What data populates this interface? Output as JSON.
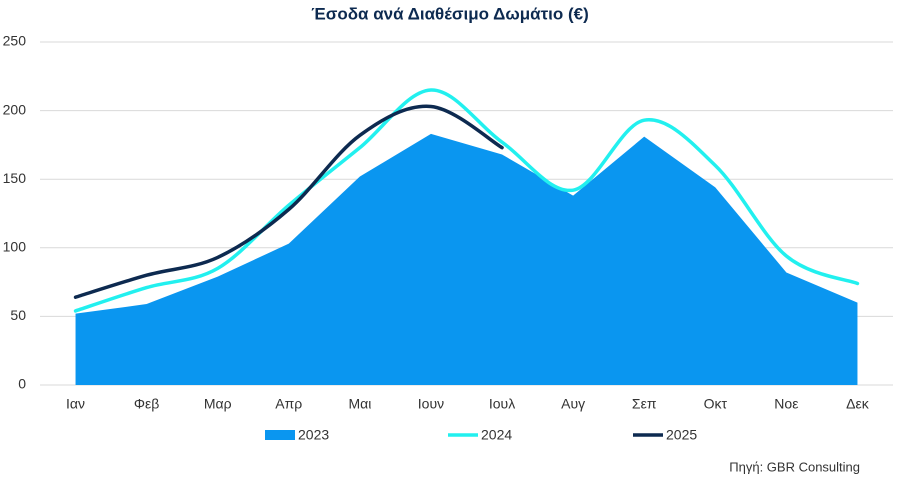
{
  "chart_data": {
    "type": "area_line",
    "title": "Έσοδα ανά Διαθέσιμο Δωμάτιο (€)",
    "categories": [
      "Ιαν",
      "Φεβ",
      "Μαρ",
      "Απρ",
      "Μαι",
      "Ιουν",
      "Ιουλ",
      "Αυγ",
      "Σεπ",
      "Οκτ",
      "Νοε",
      "Δεκ"
    ],
    "series": [
      {
        "name": "2023",
        "kind": "area",
        "color": "#0a96f0",
        "values": [
          52,
          59,
          79,
          103,
          152,
          183,
          168,
          138,
          181,
          144,
          82,
          60
        ]
      },
      {
        "name": "2024",
        "kind": "line",
        "color": "#22f0ef",
        "values": [
          54,
          71,
          85,
          131,
          173,
          215,
          177,
          142,
          193,
          160,
          94,
          74
        ]
      },
      {
        "name": "2025",
        "kind": "line",
        "color": "#0d2a50",
        "values": [
          64,
          80,
          93,
          128,
          182,
          203,
          173,
          null,
          null,
          null,
          null,
          null
        ]
      }
    ],
    "ylim": [
      0,
      250
    ],
    "yticks": [
      0,
      50,
      100,
      150,
      200,
      250
    ],
    "grid": true,
    "smooth": true,
    "legend": "bottom",
    "source": "Πηγή: GBR Consulting"
  }
}
